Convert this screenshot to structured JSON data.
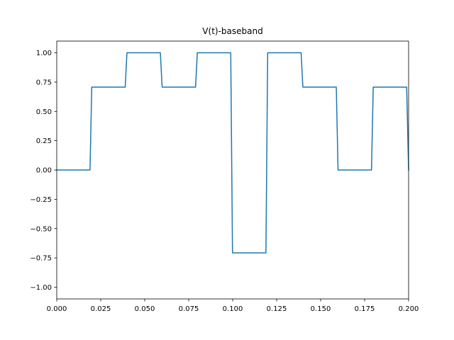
{
  "chart_data": {
    "type": "line",
    "title": "V(t)-baseband",
    "xlabel": "",
    "ylabel": "",
    "xlim": [
      0.0,
      0.2
    ],
    "ylim": [
      -1.1,
      1.1
    ],
    "grid": false,
    "xticks": [
      0.0,
      0.025,
      0.05,
      0.075,
      0.1,
      0.125,
      0.15,
      0.175,
      0.2
    ],
    "xtick_labels": [
      "0.000",
      "0.025",
      "0.050",
      "0.075",
      "0.100",
      "0.125",
      "0.150",
      "0.175",
      "0.200"
    ],
    "yticks": [
      -1.0,
      -0.75,
      -0.5,
      -0.25,
      0.0,
      0.25,
      0.5,
      0.75,
      1.0
    ],
    "ytick_labels": [
      "−1.00",
      "−0.75",
      "−0.50",
      "−0.25",
      "0.00",
      "0.25",
      "0.50",
      "0.75",
      "1.00"
    ],
    "series": [
      {
        "color": "#1f77b4",
        "x": [
          0.0,
          0.0189,
          0.0199,
          0.0389,
          0.0399,
          0.0589,
          0.0599,
          0.0789,
          0.0799,
          0.0989,
          0.0999,
          0.1189,
          0.1199,
          0.1389,
          0.1399,
          0.1589,
          0.1599,
          0.1789,
          0.1799,
          0.1989,
          0.2
        ],
        "y": [
          0.0,
          0.0,
          0.7071,
          0.7071,
          1.0,
          1.0,
          0.7071,
          0.7071,
          1.0,
          1.0,
          -0.7071,
          -0.7071,
          1.0,
          1.0,
          0.7071,
          0.7071,
          0.0,
          0.0,
          0.7071,
          0.7071,
          0.0
        ]
      }
    ]
  }
}
